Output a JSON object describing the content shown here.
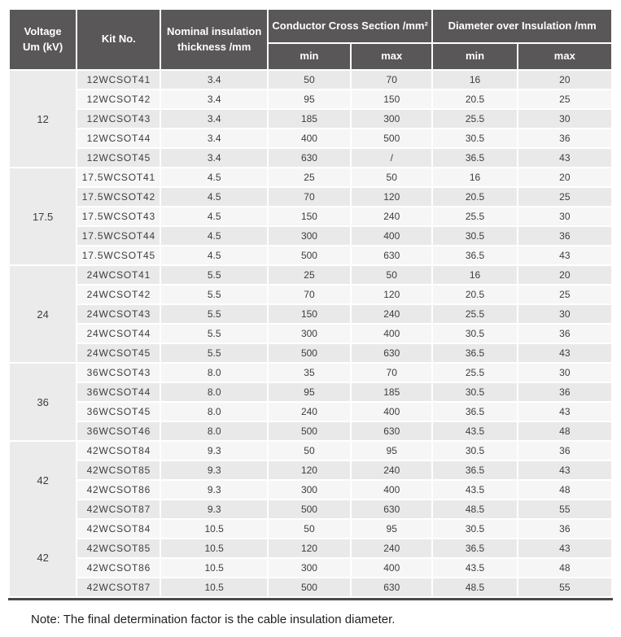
{
  "header": {
    "voltage_line1": "Voltage",
    "voltage_line2": "Um (kV)",
    "kit_no": "Kit No.",
    "nominal_line1": "Nominal insulation",
    "nominal_line2": "thickness /mm",
    "conductor_cross_section": "Conductor Cross Section /mm²",
    "diameter_over_insulation": "Diameter over Insulation /mm",
    "min": "min",
    "max": "max"
  },
  "column_keys": [
    "kit_no",
    "thickness",
    "ccs_min",
    "ccs_max",
    "dia_min",
    "dia_max"
  ],
  "groups": [
    {
      "voltage": "12",
      "rows": [
        [
          "12WCSOT41",
          "3.4",
          "50",
          "70",
          "16",
          "20"
        ],
        [
          "12WCSOT42",
          "3.4",
          "95",
          "150",
          "20.5",
          "25"
        ],
        [
          "12WCSOT43",
          "3.4",
          "185",
          "300",
          "25.5",
          "30"
        ],
        [
          "12WCSOT44",
          "3.4",
          "400",
          "500",
          "30.5",
          "36"
        ],
        [
          "12WCSOT45",
          "3.4",
          "630",
          "/",
          "36.5",
          "43"
        ]
      ]
    },
    {
      "voltage": "17.5",
      "rows": [
        [
          "17.5WCSOT41",
          "4.5",
          "25",
          "50",
          "16",
          "20"
        ],
        [
          "17.5WCSOT42",
          "4.5",
          "70",
          "120",
          "20.5",
          "25"
        ],
        [
          "17.5WCSOT43",
          "4.5",
          "150",
          "240",
          "25.5",
          "30"
        ],
        [
          "17.5WCSOT44",
          "4.5",
          "300",
          "400",
          "30.5",
          "36"
        ],
        [
          "17.5WCSOT45",
          "4.5",
          "500",
          "630",
          "36.5",
          "43"
        ]
      ]
    },
    {
      "voltage": "24",
      "rows": [
        [
          "24WCSOT41",
          "5.5",
          "25",
          "50",
          "16",
          "20"
        ],
        [
          "24WCSOT42",
          "5.5",
          "70",
          "120",
          "20.5",
          "25"
        ],
        [
          "24WCSOT43",
          "5.5",
          "150",
          "240",
          "25.5",
          "30"
        ],
        [
          "24WCSOT44",
          "5.5",
          "300",
          "400",
          "30.5",
          "36"
        ],
        [
          "24WCSOT45",
          "5.5",
          "500",
          "630",
          "36.5",
          "43"
        ]
      ]
    },
    {
      "voltage": "36",
      "rows": [
        [
          "36WCSOT43",
          "8.0",
          "35",
          "70",
          "25.5",
          "30"
        ],
        [
          "36WCSOT44",
          "8.0",
          "95",
          "185",
          "30.5",
          "36"
        ],
        [
          "36WCSOT45",
          "8.0",
          "240",
          "400",
          "36.5",
          "43"
        ],
        [
          "36WCSOT46",
          "8.0",
          "500",
          "630",
          "43.5",
          "48"
        ]
      ]
    },
    {
      "voltage": "42",
      "merge_voltage_with_next": true,
      "rows": [
        [
          "42WCSOT84",
          "9.3",
          "50",
          "95",
          "30.5",
          "36"
        ],
        [
          "42WCSOT85",
          "9.3",
          "120",
          "240",
          "36.5",
          "43"
        ],
        [
          "42WCSOT86",
          "9.3",
          "300",
          "400",
          "43.5",
          "48"
        ],
        [
          "42WCSOT87",
          "9.3",
          "500",
          "630",
          "48.5",
          "55"
        ]
      ]
    },
    {
      "voltage": "42",
      "merge_with_prev": true,
      "rows": [
        [
          "42WCSOT84",
          "10.5",
          "50",
          "95",
          "30.5",
          "36"
        ],
        [
          "42WCSOT85",
          "10.5",
          "120",
          "240",
          "36.5",
          "43"
        ],
        [
          "42WCSOT86",
          "10.5",
          "300",
          "400",
          "43.5",
          "48"
        ],
        [
          "42WCSOT87",
          "10.5",
          "500",
          "630",
          "48.5",
          "55"
        ]
      ]
    }
  ],
  "note": "Note: The final determination factor is the cable insulation diameter.",
  "colors": {
    "header_bg": "#595757",
    "row_stripe_dark": "#e9e9e9",
    "row_stripe_light": "#f6f6f6",
    "voltage_column_bg": "#ebebeb",
    "bottom_rule": "#4a4848"
  }
}
